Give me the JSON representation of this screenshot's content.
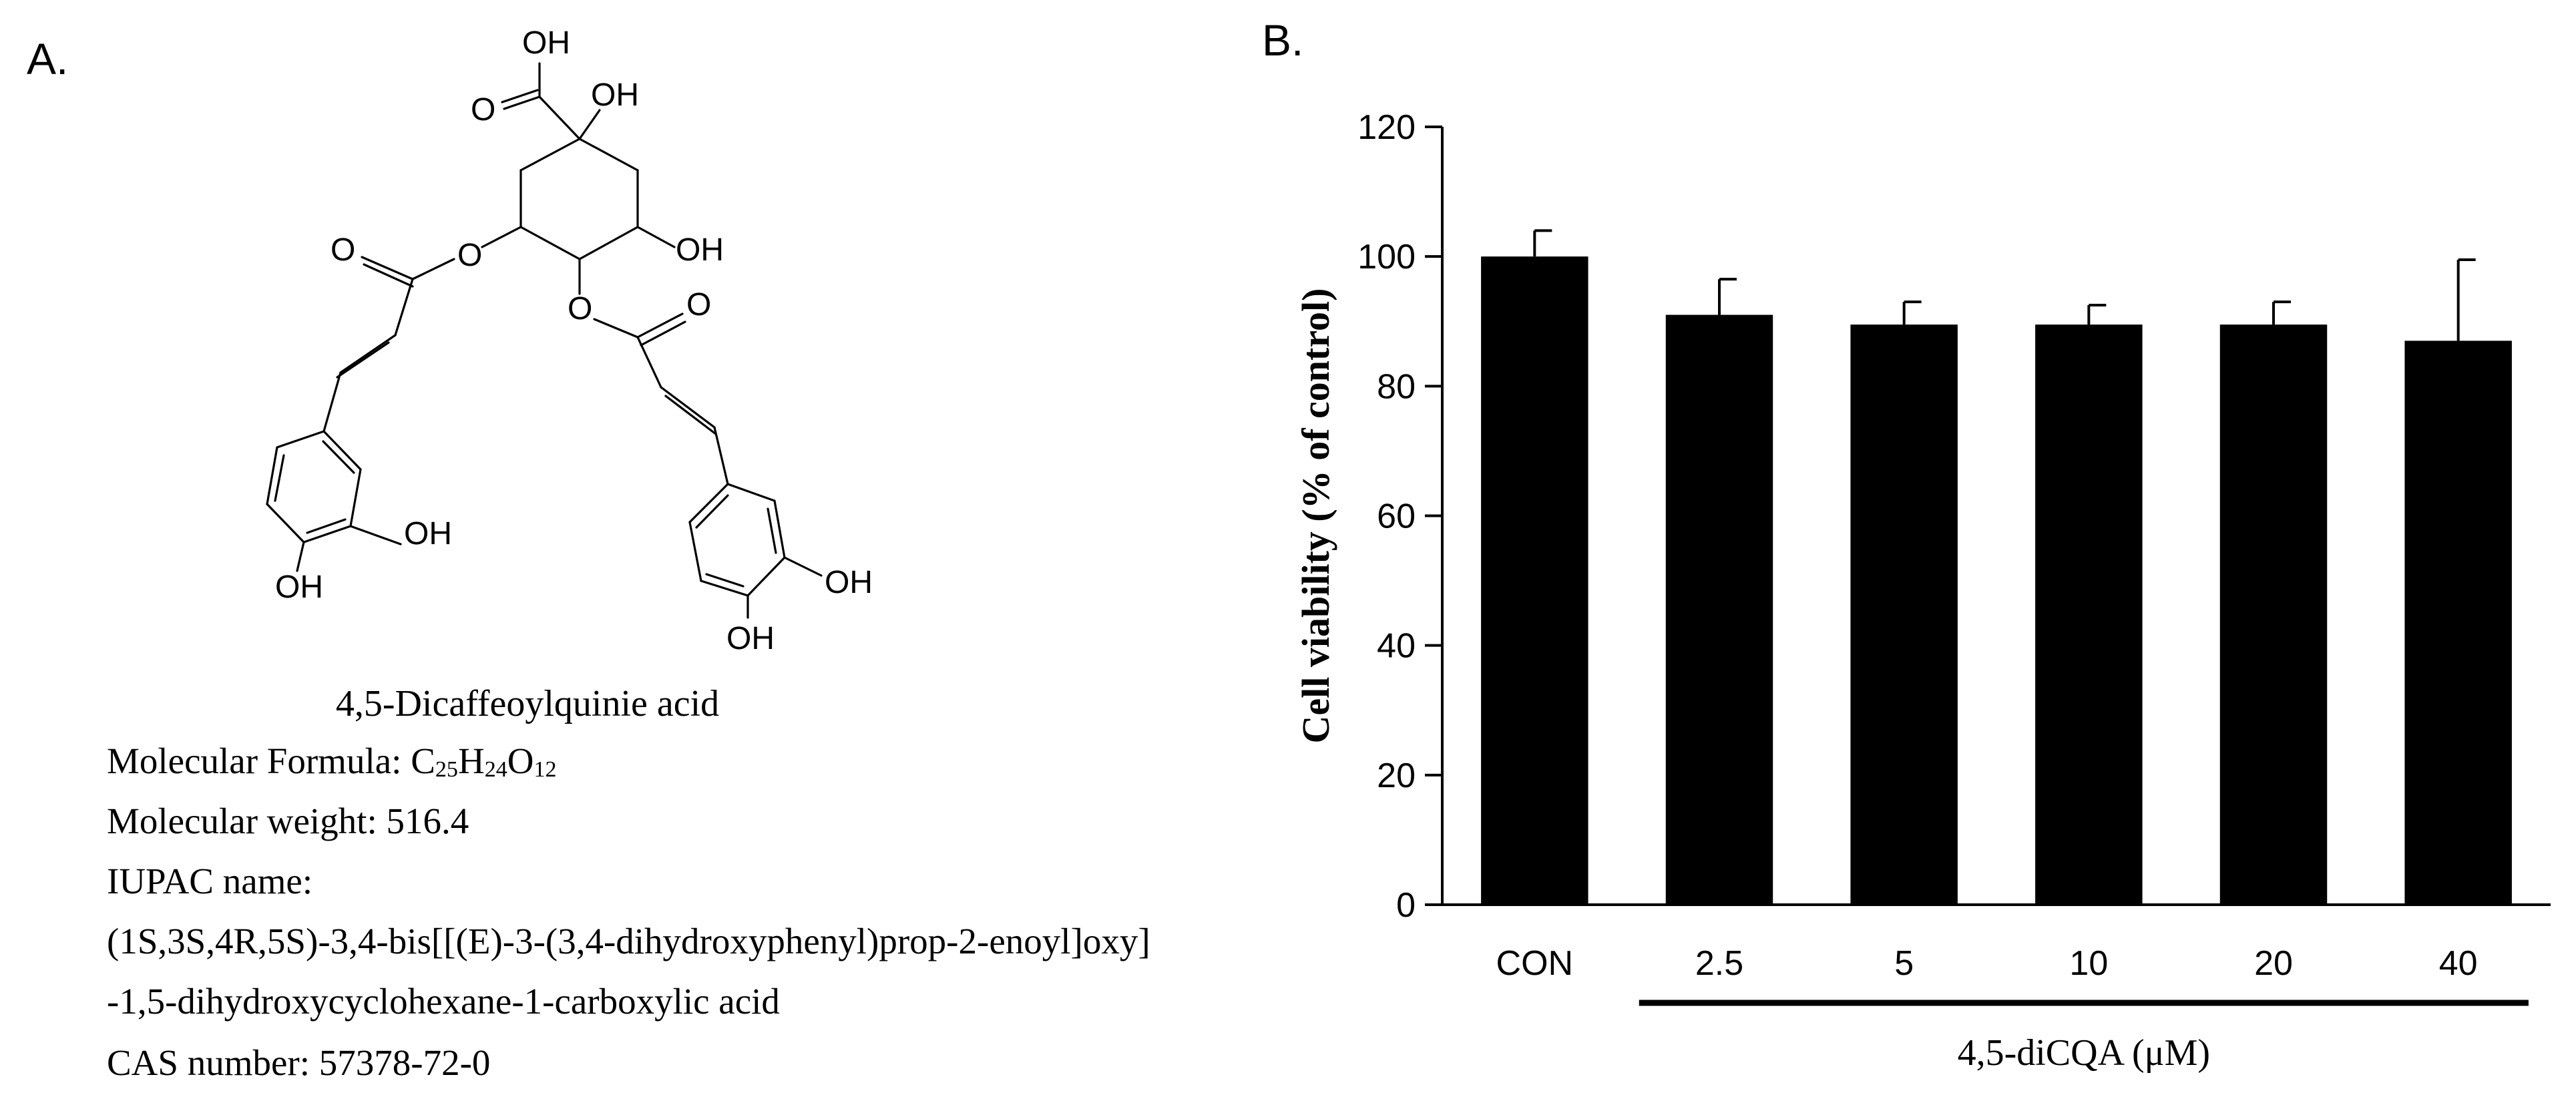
{
  "panel_a": {
    "label": "A.",
    "structure_labels": {
      "oh_top": "OH",
      "oh_quat": "OH",
      "o_carboxyl": "O",
      "oh_ring": "OH",
      "o_ester_left_carbonyl": "O",
      "o_ester_left_link": "O",
      "o_ester_right_link": "O",
      "o_ester_right_carbonyl": "O",
      "oh_left_meta": "OH",
      "oh_left_para": "OH",
      "oh_right_meta": "OH",
      "oh_right_para": "OH"
    },
    "compound_name": "4,5-Dicaffeoylquinie acid",
    "formula_label": "Molecular Formula: ",
    "formula": {
      "c": "C",
      "c_n": "25",
      "h": "H",
      "h_n": "24",
      "o": "O",
      "o_n": "12"
    },
    "weight": "Molecular weight: 516.4",
    "iupac_label": "IUPAC name:",
    "iupac_line1": "(1S,3S,4R,5S)-3,4-bis[[(E)-3-(3,4-dihydroxyphenyl)prop-2-enoyl]oxy]",
    "iupac_line2": "-1,5-dihydroxycyclohexane-1-carboxylic acid",
    "cas": "CAS number: 57378-72-0"
  },
  "panel_b": {
    "label": "B."
  },
  "chart_data": {
    "type": "bar",
    "categories": [
      "CON",
      "2.5",
      "5",
      "10",
      "20",
      "40"
    ],
    "values": [
      100,
      91,
      89.5,
      89.5,
      89.5,
      87
    ],
    "errors": [
      4,
      5.5,
      3.5,
      3,
      3.5,
      12.5
    ],
    "ylabel": "Cell viability (% of control)",
    "xlabel": "4,5-diCQA (μM)",
    "ylim": [
      0,
      120
    ],
    "yticks": [
      0,
      20,
      40,
      60,
      80,
      100,
      120
    ],
    "grid": false,
    "bar_color": "#000000"
  }
}
